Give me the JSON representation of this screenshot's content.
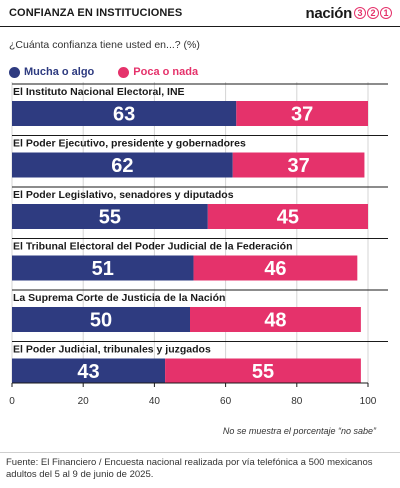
{
  "header": {
    "title": "CONFIANZA EN INSTITUCIONES",
    "brand_word": "nación",
    "brand_digits": [
      "3",
      "2",
      "1"
    ]
  },
  "chart_data": {
    "type": "bar",
    "orientation": "horizontal",
    "stacked": true,
    "title": "CONFIANZA EN INSTITUCIONES",
    "subtitle": "¿Cuánta confianza tiene usted en...? (%)",
    "categories": [
      "El Instituto Nacional Electoral, INE",
      "El Poder Ejecutivo, presidente y gobernadores",
      "El Poder Legislativo, senadores y diputados",
      "El Tribunal Electoral del Poder Judicial de la Federación",
      "La Suprema Corte de Justicia de la Nación",
      "El Poder Judicial, tribunales y juzgados"
    ],
    "series": [
      {
        "name": "Mucha o algo",
        "color": "#2e3b80",
        "values": [
          63,
          62,
          55,
          51,
          50,
          43
        ]
      },
      {
        "name": "Poca o nada",
        "color": "#e5326b",
        "values": [
          37,
          37,
          45,
          46,
          48,
          55
        ]
      }
    ],
    "xlim": [
      0,
      100
    ],
    "xticks": [
      0,
      20,
      40,
      60,
      80,
      100
    ],
    "grid": true,
    "legend_position": "top-left",
    "note": "No se muestra el porcentaje “no sabe”"
  },
  "footer": {
    "source": "Fuente: El Financiero / Encuesta nacional realizada por vía telefónica a 500 mexicanos adultos del 5 al 9 de junio de 2025."
  }
}
